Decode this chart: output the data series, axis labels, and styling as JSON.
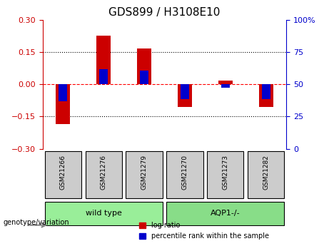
{
  "title": "GDS899 / H3108E10",
  "categories": [
    "GSM21266",
    "GSM21276",
    "GSM21279",
    "GSM21270",
    "GSM21273",
    "GSM21282"
  ],
  "log_ratio": [
    -0.185,
    0.225,
    0.165,
    -0.105,
    0.018,
    -0.105
  ],
  "pct_rank_from_zero": [
    -0.08,
    0.07,
    0.065,
    -0.07,
    -0.015,
    -0.07
  ],
  "pct_rank_abs": [
    32,
    70,
    67,
    32,
    48,
    32
  ],
  "ylim_left": [
    -0.3,
    0.3
  ],
  "ylim_right": [
    0,
    100
  ],
  "yticks_left": [
    -0.3,
    -0.15,
    0,
    0.15,
    0.3
  ],
  "yticks_right": [
    0,
    25,
    50,
    75,
    100
  ],
  "hlines": [
    -0.15,
    0.0,
    0.15
  ],
  "hline_styles": [
    "dotted",
    "dashed",
    "dotted"
  ],
  "hline_colors": [
    "black",
    "red",
    "black"
  ],
  "bar_width": 0.35,
  "red_color": "#cc0000",
  "blue_color": "#0000cc",
  "wild_type_indices": [
    0,
    1,
    2
  ],
  "aqp1_indices": [
    3,
    4,
    5
  ],
  "group_label_wt": "wild type",
  "group_label_aqp": "AQP1-/-",
  "group_box_color_wt": "#99ee99",
  "group_box_color_aqp": "#88dd88",
  "sample_box_color": "#cccccc",
  "genotype_label": "genotype/variation",
  "legend_items": [
    "log ratio",
    "percentile rank within the sample"
  ],
  "legend_colors": [
    "#cc0000",
    "#0000cc"
  ],
  "ylabel_left_color": "#cc0000",
  "ylabel_right_color": "#0000cc"
}
